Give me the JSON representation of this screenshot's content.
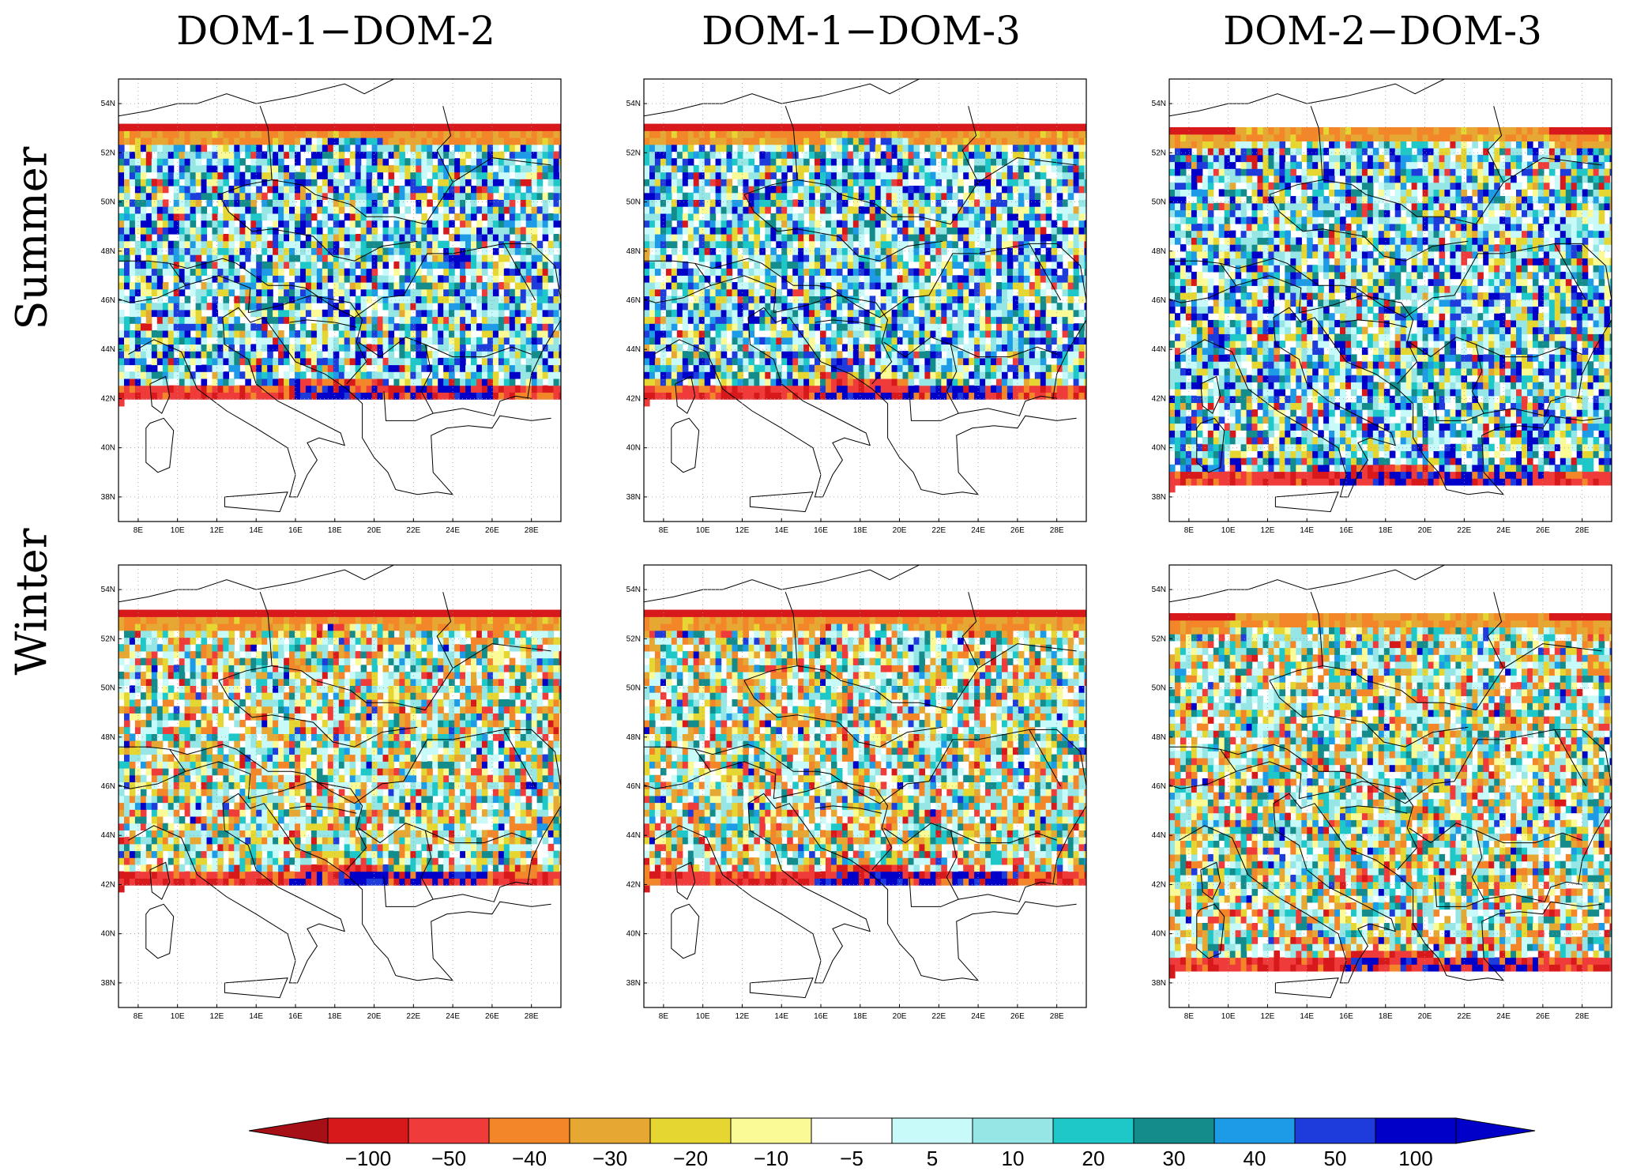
{
  "figure": {
    "columns": [
      "DOM-1−DOM-2",
      "DOM-1−DOM-3",
      "DOM-2−DOM-3"
    ],
    "rows": [
      "Summer",
      "Winter"
    ]
  },
  "map_axes": {
    "lat_labels": [
      "54N",
      "52N",
      "50N",
      "48N",
      "46N",
      "44N",
      "42N",
      "40N",
      "38N"
    ],
    "lon_labels": [
      "8E",
      "10E",
      "12E",
      "14E",
      "16E",
      "18E",
      "20E",
      "22E",
      "24E",
      "26E",
      "28E"
    ],
    "lat_range": [
      37,
      55
    ],
    "lon_range": [
      7,
      29.5
    ]
  },
  "panels": [
    {
      "id": "summer-d1d2",
      "season": "Summer",
      "diff": "DOM-1−DOM-2",
      "lat_extent": [
        41.7,
        53.0
      ],
      "pattern": "summer"
    },
    {
      "id": "summer-d1d3",
      "season": "Summer",
      "diff": "DOM-1−DOM-3",
      "lat_extent": [
        41.7,
        53.0
      ],
      "pattern": "summer"
    },
    {
      "id": "summer-d2d3",
      "season": "Summer",
      "diff": "DOM-2−DOM-3",
      "lat_extent": [
        38.2,
        53.0
      ],
      "pattern": "summer"
    },
    {
      "id": "winter-d1d2",
      "season": "Winter",
      "diff": "DOM-1−DOM-2",
      "lat_extent": [
        41.7,
        53.0
      ],
      "pattern": "winter"
    },
    {
      "id": "winter-d1d3",
      "season": "Winter",
      "diff": "DOM-1−DOM-3",
      "lat_extent": [
        41.7,
        53.0
      ],
      "pattern": "winter"
    },
    {
      "id": "winter-d2d3",
      "season": "Winter",
      "diff": "DOM-2−DOM-3",
      "lat_extent": [
        38.2,
        53.0
      ],
      "pattern": "winter"
    }
  ],
  "colorbar": {
    "labels": [
      "−100",
      "−50",
      "−40",
      "−30",
      "−20",
      "−10",
      "−5",
      "5",
      "10",
      "20",
      "30",
      "40",
      "50",
      "100"
    ],
    "low_arrow_color": "#a50f15",
    "high_arrow_color": "#0000c8",
    "colors": [
      "#d7191c",
      "#f03b3b",
      "#f4862a",
      "#e6a832",
      "#e6d632",
      "#fafa96",
      "#ffffff",
      "#c8fafa",
      "#96e6e6",
      "#1ec8c8",
      "#148c8c",
      "#1e9be6",
      "#1e3cdc",
      "#0000c8"
    ]
  }
}
